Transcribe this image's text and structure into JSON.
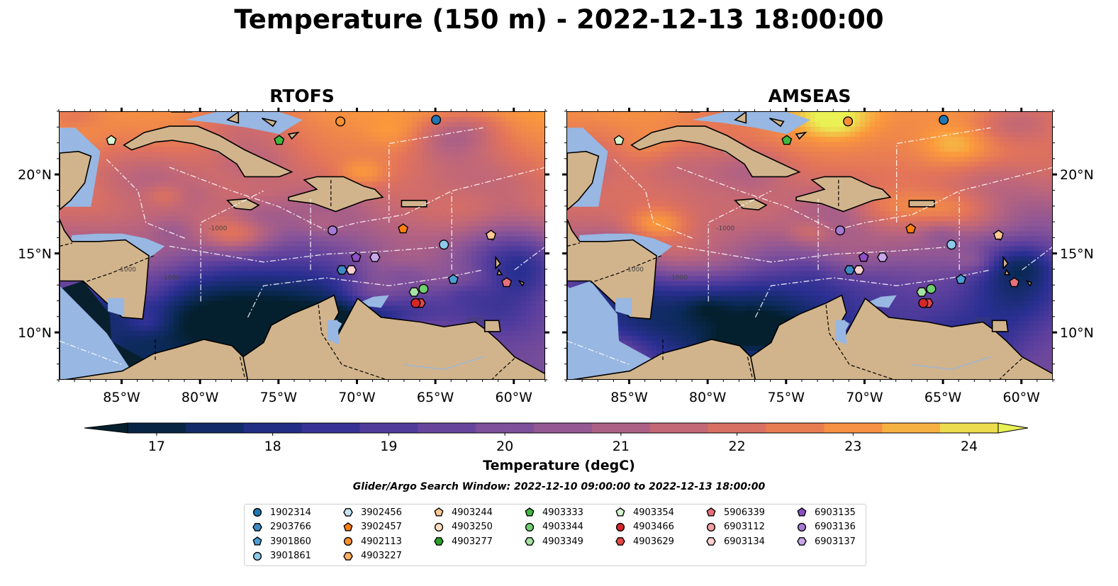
{
  "title": "Temperature (150 m) - 2022-12-13 18:00:00",
  "panels": [
    {
      "id": "rtofs",
      "title": "RTOFS"
    },
    {
      "id": "amseas",
      "title": "AMSEAS"
    }
  ],
  "map": {
    "projection": "lon-lat",
    "lon_range": [
      -89,
      -58
    ],
    "lat_range": [
      7,
      24
    ],
    "lon_ticks": [
      "85°W",
      "80°W",
      "75°W",
      "70°W",
      "65°W",
      "60°W"
    ],
    "lat_ticks": [
      "20°N",
      "15°N",
      "10°N"
    ],
    "land_color": "#d2b48c",
    "shallow_water_color": "#98b7e2",
    "bathymetry_contour_label": "-1000"
  },
  "colorbar": {
    "label": "Temperature (degC)",
    "ticks": [
      "17",
      "18",
      "19",
      "20",
      "21",
      "22",
      "23",
      "24"
    ],
    "range": [
      16.75,
      24.25
    ],
    "colormap": "thermal",
    "extend": "both"
  },
  "search_window": "Glider/Argo Search Window: 2022-12-10 09:00:00 to 2022-12-13 18:00:00",
  "legend": {
    "columns": [
      [
        {
          "id": "1902314",
          "color": "#1f77b4",
          "shape": "circle"
        },
        {
          "id": "2903766",
          "color": "#3e8ac4",
          "shape": "hexagon"
        },
        {
          "id": "3901860",
          "color": "#4c9ed4",
          "shape": "pentagon"
        },
        {
          "id": "3901861",
          "color": "#8ec8ea",
          "shape": "circle"
        }
      ],
      [
        {
          "id": "3902456",
          "color": "#c6e4f4",
          "shape": "hexagon"
        },
        {
          "id": "3902457",
          "color": "#ff7f0e",
          "shape": "pentagon"
        },
        {
          "id": "4902113",
          "color": "#ff902e",
          "shape": "circle"
        },
        {
          "id": "4903227",
          "color": "#ffae61",
          "shape": "hexagon"
        }
      ],
      [
        {
          "id": "4903244",
          "color": "#ffc896",
          "shape": "pentagon"
        },
        {
          "id": "4903250",
          "color": "#ffe0c0",
          "shape": "circle"
        },
        {
          "id": "4903277",
          "color": "#2ca02c",
          "shape": "hexagon"
        }
      ],
      [
        {
          "id": "4903333",
          "color": "#3fb83f",
          "shape": "pentagon"
        },
        {
          "id": "4903344",
          "color": "#6fcf6f",
          "shape": "circle"
        },
        {
          "id": "4903349",
          "color": "#a3e2a3",
          "shape": "hexagon"
        }
      ],
      [
        {
          "id": "4903354",
          "color": "#d6f6d0",
          "shape": "pentagon"
        },
        {
          "id": "4903466",
          "color": "#d62728",
          "shape": "circle"
        },
        {
          "id": "4903629",
          "color": "#e04848",
          "shape": "hexagon"
        }
      ],
      [
        {
          "id": "5906339",
          "color": "#e8707a",
          "shape": "pentagon"
        },
        {
          "id": "6903112",
          "color": "#f2a0a0",
          "shape": "circle"
        },
        {
          "id": "6903134",
          "color": "#fbd0d0",
          "shape": "hexagon"
        }
      ],
      [
        {
          "id": "6903135",
          "color": "#8c4fc4",
          "shape": "pentagon"
        },
        {
          "id": "6903136",
          "color": "#a77ad6",
          "shape": "circle"
        },
        {
          "id": "6903137",
          "color": "#c9a6ea",
          "shape": "hexagon"
        }
      ]
    ]
  },
  "platforms": [
    {
      "id": "1902314",
      "lon": -65.0,
      "lat": 23.5
    },
    {
      "id": "4902113",
      "lon": -71.1,
      "lat": 23.4
    },
    {
      "id": "4903354",
      "lon": -85.7,
      "lat": 22.2
    },
    {
      "id": "4903333",
      "lon": -75.0,
      "lat": 22.2
    },
    {
      "id": "6903136",
      "lon": -71.6,
      "lat": 16.5
    },
    {
      "id": "3902457",
      "lon": -67.1,
      "lat": 16.6
    },
    {
      "id": "3901861",
      "lon": -64.5,
      "lat": 15.6
    },
    {
      "id": "6903135",
      "lon": -70.1,
      "lat": 14.8
    },
    {
      "id": "6903137",
      "lon": -68.9,
      "lat": 14.8
    },
    {
      "id": "2903766",
      "lon": -71.0,
      "lat": 14.0
    },
    {
      "id": "6903134",
      "lon": -70.4,
      "lat": 14.0
    },
    {
      "id": "3901860",
      "lon": -63.9,
      "lat": 13.4
    },
    {
      "id": "4903344",
      "lon": -65.8,
      "lat": 12.8
    },
    {
      "id": "4903349",
      "lon": -66.4,
      "lat": 12.6
    },
    {
      "id": "4903629",
      "lon": -66.0,
      "lat": 11.9
    },
    {
      "id": "4903466",
      "lon": -66.3,
      "lat": 11.9
    },
    {
      "id": "5906339",
      "lon": -60.5,
      "lat": 13.2
    },
    {
      "id": "4903244",
      "lon": -61.5,
      "lat": 16.2
    }
  ]
}
